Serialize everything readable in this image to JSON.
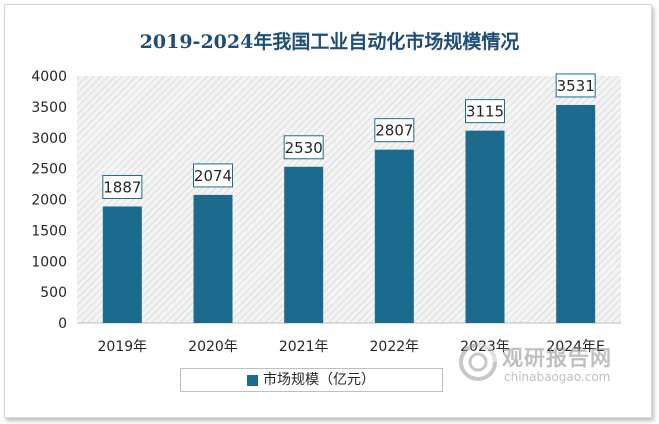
{
  "chart_data": {
    "type": "bar",
    "title": "2019-2024年我国工业自动化市场规模情况",
    "categories": [
      "2019年",
      "2020年",
      "2021年",
      "2022年",
      "2023年",
      "2024年E"
    ],
    "series": [
      {
        "name": "市场规模（亿元）",
        "values": [
          1887,
          2074,
          2530,
          2807,
          3115,
          3531
        ]
      }
    ],
    "data_labels": [
      "1887",
      "2074",
      "2530",
      "2807",
      "3115",
      "3531"
    ],
    "ylim": [
      0,
      4000
    ],
    "yticks": [
      0,
      500,
      1000,
      1500,
      2000,
      2500,
      3000,
      3500,
      4000
    ],
    "ytick_labels": [
      "0",
      "500",
      "1000",
      "1500",
      "2000",
      "2500",
      "3000",
      "3500",
      "4000"
    ],
    "legend_position": "bottom",
    "grid": false,
    "colors": {
      "bar": "#1c6b8e",
      "title": "#1f4e79",
      "label_border": "#1c6b8e"
    }
  },
  "watermark": {
    "text_cn": "观研报告网",
    "text_en": "chinabaogao.com"
  }
}
